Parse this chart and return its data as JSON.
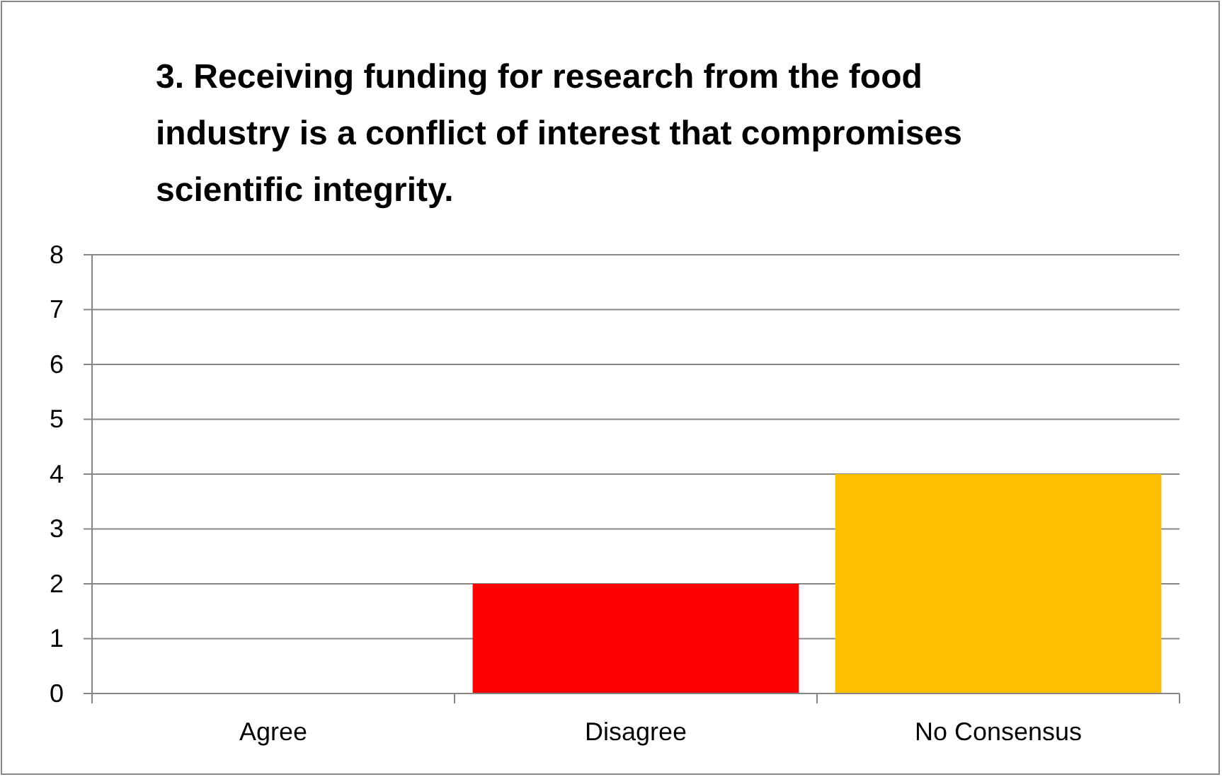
{
  "chart_data": {
    "type": "bar",
    "title": "3. Receiving funding for research from the food industry is a conflict of interest that compromises scientific integrity.",
    "categories": [
      "Agree",
      "Disagree",
      "No Consensus"
    ],
    "values": [
      0,
      2,
      4
    ],
    "colors": [
      "#00b050",
      "#ff0000",
      "#ffc000"
    ],
    "ylim": [
      0,
      8
    ],
    "yticks": [
      0,
      1,
      2,
      3,
      4,
      5,
      6,
      7,
      8
    ],
    "grid": "y"
  }
}
